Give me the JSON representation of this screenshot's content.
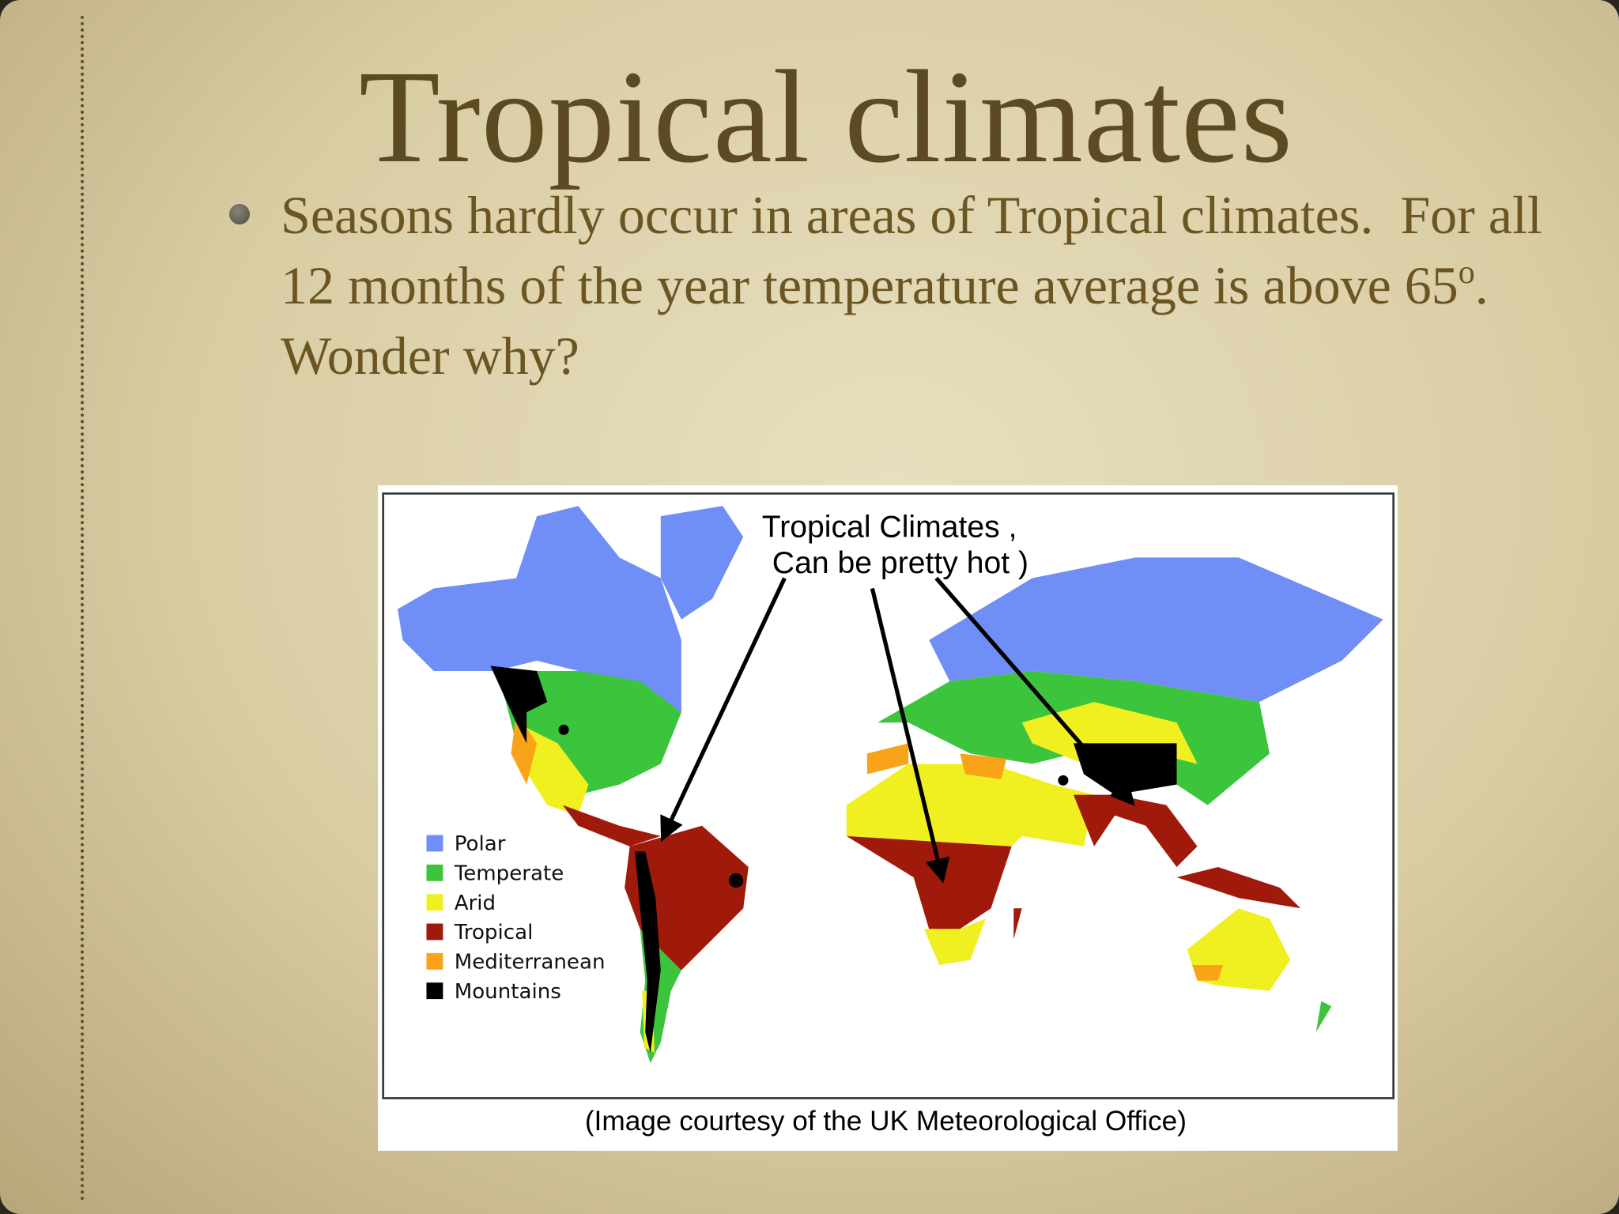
{
  "slide": {
    "title": "Tropical climates",
    "bullet": {
      "text": "Seasons hardly occur in areas of Tropical climates.  For all 12 months of the year temperature average is above 65",
      "superscript": "o",
      "tail": ".  Wonder why?"
    },
    "map": {
      "annotation": [
        "Tropical Climates ,",
        "Can be pretty hot )"
      ],
      "legend": [
        "Polar",
        "Temperate",
        "Arid",
        "Tropical",
        "Mediterranean",
        "Mountains"
      ],
      "caption": "(Image courtesy of the UK Meteorological Office)"
    }
  }
}
